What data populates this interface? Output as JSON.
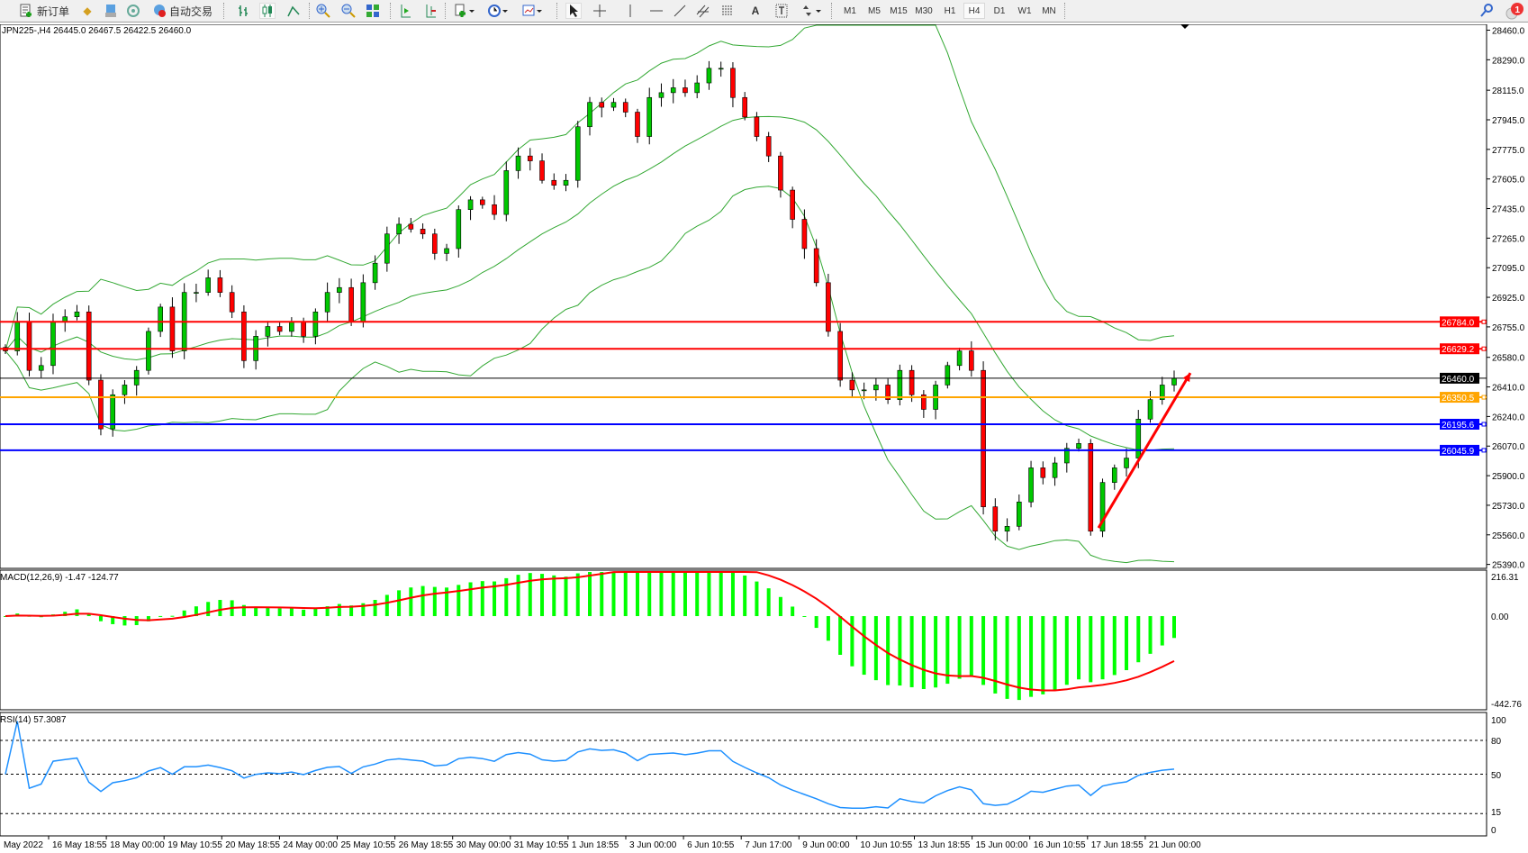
{
  "toolbar": {
    "new_order_label": "新订单",
    "auto_trading_label": "自动交易",
    "timeframes": [
      "M1",
      "M5",
      "M15",
      "M30",
      "H1",
      "H4",
      "D1",
      "W1",
      "MN"
    ],
    "active_timeframe": "H4",
    "notification_count": "1",
    "icons": [
      "new-order-icon",
      "gold-icon",
      "market-watch-icon",
      "signal-icon",
      "auto-trading-icon",
      "bar-chart-icon",
      "candlestick-icon",
      "line-chart-icon",
      "zoom-in-icon",
      "zoom-out-icon",
      "tile-windows-icon",
      "chart-shift-icon",
      "autoscroll-icon",
      "indicators-icon",
      "periods-icon",
      "templates-icon",
      "cursor-icon",
      "crosshair-icon",
      "vertical-line-icon",
      "horizontal-line-icon",
      "trendline-icon",
      "channel-icon",
      "fibonacci-icon",
      "text-icon",
      "text-label-icon",
      "arrows-icon",
      "search-icon",
      "notification-icon"
    ]
  },
  "chart": {
    "title": "JPN225-,H4  26445.0 26467.5 26422.5 26460.0",
    "symbol": "JPN225-",
    "timeframe": "H4",
    "ohlc": {
      "open": 26445.0,
      "high": 26467.5,
      "low": 26422.5,
      "close": 26460.0
    },
    "colors": {
      "bull": "#00c800",
      "bear": "#ff0000",
      "bands": "#33a833",
      "macd_hist": "#00ff00",
      "macd_signal": "#ff0000",
      "rsi": "#1e90ff"
    },
    "price_axis": [
      "28460.0",
      "28290.0",
      "28115.0",
      "27945.0",
      "27775.0",
      "27605.0",
      "27435.0",
      "27265.0",
      "27095.0",
      "26925.0",
      "26755.0",
      "26580.0",
      "26410.0",
      "26240.0",
      "26070.0",
      "25900.0",
      "25730.0",
      "25560.0",
      "25390.0"
    ],
    "horizontal_lines": [
      {
        "price": 26784.0,
        "label": "26784.0",
        "color": "#ff0000"
      },
      {
        "price": 26629.2,
        "label": "26629.2",
        "color": "#ff0000"
      },
      {
        "price": 26460.0,
        "label": "26460.0",
        "color": "#000000"
      },
      {
        "price": 26350.5,
        "label": "26350.5",
        "color": "#ffa500"
      },
      {
        "price": 26195.6,
        "label": "26195.6",
        "color": "#0000ff"
      },
      {
        "price": 26045.9,
        "label": "26045.9",
        "color": "#0000ff"
      }
    ],
    "trend_arrow": {
      "color": "#ff0000",
      "from_price": 25600,
      "to_price": 26490
    },
    "time_axis": [
      "May 2022",
      "16 May 18:55",
      "18 May 00:00",
      "19 May 10:55",
      "20 May 18:55",
      "24 May 00:00",
      "25 May 10:55",
      "26 May 18:55",
      "30 May 00:00",
      "31 May 10:55",
      "1 Jun 18:55",
      "3 Jun 00:00",
      "6 Jun 10:55",
      "7 Jun 17:00",
      "9 Jun 00:00",
      "10 Jun 10:55",
      "13 Jun 18:55",
      "15 Jun 00:00",
      "16 Jun 10:55",
      "17 Jun 18:55",
      "21 Jun 00:00"
    ]
  },
  "macd": {
    "title": "MACD(12,26,9) -1.47 -124.77",
    "axis": [
      "216.31",
      "0.00",
      "-442.76"
    ]
  },
  "rsi": {
    "title": "RSI(14) 57.3087",
    "axis": [
      "100",
      "80",
      "50",
      "15",
      "0"
    ],
    "levels": [
      80,
      50,
      15
    ]
  },
  "chart_data": {
    "type": "candlestick",
    "closes": [
      26617,
      26785,
      26505,
      26533,
      26785,
      26813,
      26841,
      26449,
      26169,
      26365,
      26421,
      26505,
      26729,
      26869,
      26617,
      26953,
      26953,
      27037,
      26953,
      26841,
      26561,
      26701,
      26757,
      26729,
      26785,
      26701,
      26841,
      26953,
      26981,
      26785,
      27009,
      27121,
      27289,
      27345,
      27317,
      27289,
      27177,
      27205,
      27429,
      27485,
      27457,
      27401,
      27653,
      27737,
      27709,
      27597,
      27569,
      27597,
      27905,
      28045,
      28017,
      28045,
      27989,
      27849,
      28073,
      28101,
      28129,
      28101,
      28157,
      28241,
      28241,
      28073,
      27961,
      27849,
      27737,
      27541,
      27373,
      27205,
      27009,
      26729,
      26449,
      26393,
      26393,
      26421,
      26337,
      26505,
      26365,
      26281,
      26421,
      26533,
      26617,
      26505,
      25721,
      25581,
      25609,
      25749,
      25945,
      25889,
      25973,
      26057,
      26085,
      25581,
      25861,
      25945,
      26001,
      26225,
      26337,
      26421,
      26460
    ],
    "ylim": [
      25390,
      28460
    ]
  }
}
